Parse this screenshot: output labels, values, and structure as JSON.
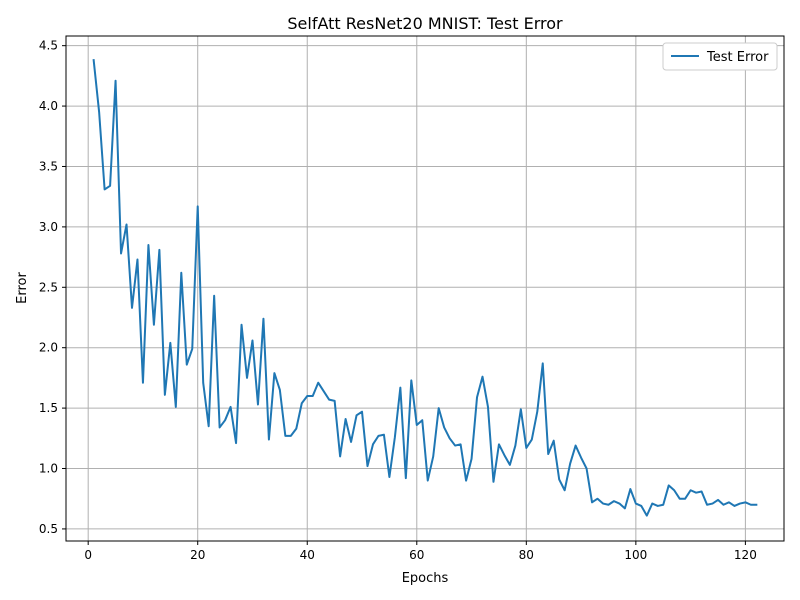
{
  "chart_data": {
    "type": "line",
    "title": "SelfAtt ResNet20 MNIST: Test Error",
    "xlabel": "Epochs",
    "ylabel": "Error",
    "xlim": [
      -4.05,
      127.05
    ],
    "ylim": [
      0.4,
      4.58
    ],
    "xticks": [
      0,
      20,
      40,
      60,
      80,
      100,
      120
    ],
    "yticks": [
      0.5,
      1.0,
      1.5,
      2.0,
      2.5,
      3.0,
      3.5,
      4.0,
      4.5
    ],
    "xtick_labels": [
      "0",
      "20",
      "40",
      "60",
      "80",
      "100",
      "120"
    ],
    "ytick_labels": [
      "0.5",
      "1.0",
      "1.5",
      "2.0",
      "2.5",
      "3.0",
      "3.5",
      "4.0",
      "4.5"
    ],
    "grid": true,
    "legend_position": "top-right",
    "series": [
      {
        "name": "Test Error",
        "color": "#1f77b4",
        "x": [
          1,
          2,
          3,
          4,
          5,
          6,
          7,
          8,
          9,
          10,
          11,
          12,
          13,
          14,
          15,
          16,
          17,
          18,
          19,
          20,
          21,
          22,
          23,
          24,
          25,
          26,
          27,
          28,
          29,
          30,
          31,
          32,
          33,
          34,
          35,
          36,
          37,
          38,
          39,
          40,
          41,
          42,
          43,
          44,
          45,
          46,
          47,
          48,
          49,
          50,
          51,
          52,
          53,
          54,
          55,
          56,
          57,
          58,
          59,
          60,
          61,
          62,
          63,
          64,
          65,
          66,
          67,
          68,
          69,
          70,
          71,
          72,
          73,
          74,
          75,
          76,
          77,
          78,
          79,
          80,
          81,
          82,
          83,
          84,
          85,
          86,
          87,
          88,
          89,
          90,
          91,
          92,
          93,
          94,
          95,
          96,
          97,
          98,
          99,
          100,
          101,
          102,
          103,
          104,
          105,
          106,
          107,
          108,
          109,
          110,
          111,
          112,
          113,
          114,
          115,
          116,
          117,
          118,
          119,
          120,
          121,
          122
        ],
        "values": [
          4.38,
          3.95,
          3.31,
          3.34,
          4.21,
          2.78,
          3.02,
          2.33,
          2.73,
          1.71,
          2.85,
          2.19,
          2.81,
          1.61,
          2.04,
          1.51,
          2.62,
          1.86,
          1.99,
          3.17,
          1.71,
          1.35,
          2.43,
          1.34,
          1.4,
          1.51,
          1.21,
          2.19,
          1.75,
          2.06,
          1.53,
          2.24,
          1.24,
          1.79,
          1.65,
          1.27,
          1.27,
          1.33,
          1.54,
          1.6,
          1.6,
          1.71,
          1.64,
          1.57,
          1.56,
          1.1,
          1.41,
          1.22,
          1.44,
          1.47,
          1.02,
          1.2,
          1.27,
          1.28,
          0.93,
          1.26,
          1.67,
          0.92,
          1.73,
          1.36,
          1.4,
          0.9,
          1.1,
          1.5,
          1.34,
          1.25,
          1.19,
          1.2,
          0.9,
          1.08,
          1.59,
          1.76,
          1.51,
          0.89,
          1.2,
          1.11,
          1.03,
          1.19,
          1.49,
          1.17,
          1.24,
          1.47,
          1.87,
          1.12,
          1.23,
          0.91,
          0.82,
          1.04,
          1.19,
          1.09,
          1.0,
          0.72,
          0.75,
          0.71,
          0.7,
          0.73,
          0.71,
          0.67,
          0.83,
          0.71,
          0.69,
          0.61,
          0.71,
          0.69,
          0.7,
          0.86,
          0.82,
          0.75,
          0.75,
          0.82,
          0.8,
          0.81,
          0.7,
          0.71,
          0.74,
          0.7,
          0.72,
          0.69,
          0.71,
          0.72,
          0.7,
          0.7
        ]
      }
    ]
  }
}
